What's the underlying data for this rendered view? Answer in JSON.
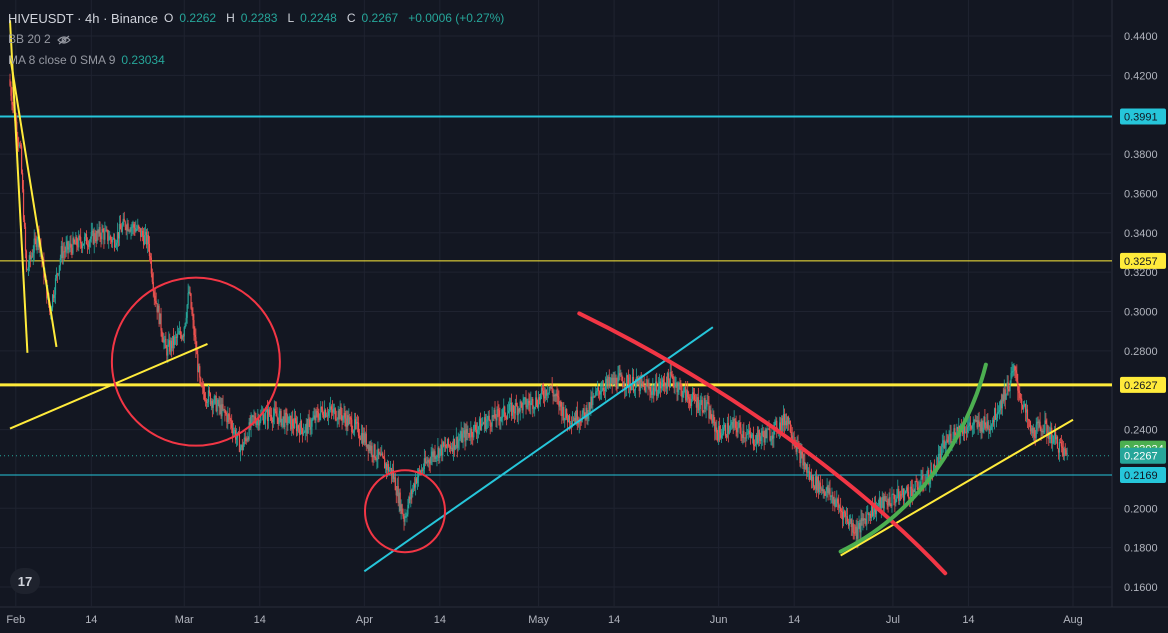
{
  "header": {
    "symbol": "HIVEUSDT · 4h · Binance",
    "o_label": "O",
    "o_value": "0.2262",
    "h_label": "H",
    "h_value": "0.2283",
    "l_label": "L",
    "l_value": "0.2248",
    "c_label": "C",
    "c_value": "0.2267",
    "change": "+0.0006 (+0.27%)",
    "bb_label": "BB 20 2",
    "ma_label": "MA 8 close 0 SMA 9",
    "ma_value": "0.23034"
  },
  "logo_text": "17",
  "colors": {
    "background": "#131722",
    "up": "#26a69a",
    "down": "#ef5350",
    "cyan": "#26c6da",
    "yellow": "#ffeb3b",
    "red": "#f23645",
    "green": "#4caf50"
  },
  "chart_data": {
    "type": "candlestick",
    "x_ticks": [
      "Feb",
      "14",
      "Mar",
      "14",
      "Apr",
      "14",
      "May",
      "14",
      "Jun",
      "14",
      "Jul",
      "14",
      "Aug"
    ],
    "x_tick_dates": [
      "2024-02-01",
      "2024-02-14",
      "2024-03-01",
      "2024-03-14",
      "2024-04-01",
      "2024-04-14",
      "2024-05-01",
      "2024-05-14",
      "2024-06-01",
      "2024-06-14",
      "2024-07-01",
      "2024-07-14",
      "2024-08-01"
    ],
    "y_ticks": [
      "0.4400",
      "0.4200",
      "0.3800",
      "0.3600",
      "0.3400",
      "0.3200",
      "0.3000",
      "0.2800",
      "0.2400",
      "0.2000",
      "0.1800",
      "0.1600"
    ],
    "ylim": [
      0.153,
      0.447
    ],
    "price_series": [
      [
        "2024-01-31",
        0.418
      ],
      [
        "2024-02-02",
        0.38
      ],
      [
        "2024-02-03",
        0.32
      ],
      [
        "2024-02-05",
        0.34
      ],
      [
        "2024-02-07",
        0.3
      ],
      [
        "2024-02-09",
        0.33
      ],
      [
        "2024-02-12",
        0.335
      ],
      [
        "2024-02-14",
        0.337
      ],
      [
        "2024-02-16",
        0.34
      ],
      [
        "2024-02-18",
        0.336
      ],
      [
        "2024-02-20",
        0.345
      ],
      [
        "2024-02-22",
        0.342
      ],
      [
        "2024-02-24",
        0.335
      ],
      [
        "2024-02-25",
        0.31
      ],
      [
        "2024-02-27",
        0.28
      ],
      [
        "2024-03-01",
        0.29
      ],
      [
        "2024-03-02",
        0.31
      ],
      [
        "2024-03-04",
        0.26
      ],
      [
        "2024-03-06",
        0.255
      ],
      [
        "2024-03-09",
        0.245
      ],
      [
        "2024-03-11",
        0.23
      ],
      [
        "2024-03-13",
        0.245
      ],
      [
        "2024-03-16",
        0.248
      ],
      [
        "2024-03-19",
        0.244
      ],
      [
        "2024-03-22",
        0.24
      ],
      [
        "2024-03-25",
        0.25
      ],
      [
        "2024-03-28",
        0.248
      ],
      [
        "2024-03-31",
        0.24
      ],
      [
        "2024-04-03",
        0.228
      ],
      [
        "2024-04-06",
        0.218
      ],
      [
        "2024-04-08",
        0.195
      ],
      [
        "2024-04-10",
        0.215
      ],
      [
        "2024-04-13",
        0.228
      ],
      [
        "2024-04-16",
        0.232
      ],
      [
        "2024-04-19",
        0.238
      ],
      [
        "2024-04-22",
        0.244
      ],
      [
        "2024-04-25",
        0.248
      ],
      [
        "2024-04-28",
        0.252
      ],
      [
        "2024-05-01",
        0.255
      ],
      [
        "2024-05-03",
        0.262
      ],
      [
        "2024-05-06",
        0.246
      ],
      [
        "2024-05-09",
        0.247
      ],
      [
        "2024-05-12",
        0.262
      ],
      [
        "2024-05-15",
        0.265
      ],
      [
        "2024-05-18",
        0.263
      ],
      [
        "2024-05-21",
        0.26
      ],
      [
        "2024-05-24",
        0.266
      ],
      [
        "2024-05-27",
        0.256
      ],
      [
        "2024-05-30",
        0.252
      ],
      [
        "2024-06-01",
        0.238
      ],
      [
        "2024-06-04",
        0.242
      ],
      [
        "2024-06-07",
        0.235
      ],
      [
        "2024-06-10",
        0.238
      ],
      [
        "2024-06-13",
        0.246
      ],
      [
        "2024-06-15",
        0.228
      ],
      [
        "2024-06-17",
        0.215
      ],
      [
        "2024-06-20",
        0.208
      ],
      [
        "2024-06-23",
        0.196
      ],
      [
        "2024-06-25",
        0.188
      ],
      [
        "2024-06-27",
        0.198
      ],
      [
        "2024-06-29",
        0.202
      ],
      [
        "2024-07-02",
        0.206
      ],
      [
        "2024-07-05",
        0.21
      ],
      [
        "2024-07-08",
        0.218
      ],
      [
        "2024-07-10",
        0.232
      ],
      [
        "2024-07-12",
        0.24
      ],
      [
        "2024-07-15",
        0.242
      ],
      [
        "2024-07-18",
        0.243
      ],
      [
        "2024-07-21",
        0.262
      ],
      [
        "2024-07-22",
        0.27
      ],
      [
        "2024-07-23",
        0.258
      ],
      [
        "2024-07-25",
        0.238
      ],
      [
        "2024-07-27",
        0.242
      ],
      [
        "2024-07-29",
        0.235
      ],
      [
        "2024-07-31",
        0.2267
      ]
    ],
    "horizontal_lines": [
      {
        "price": 0.3991,
        "label": "0.3991",
        "color": "#26c6da",
        "width": 2
      },
      {
        "price": 0.3257,
        "label": "0.3257",
        "color": "#ffeb3b",
        "width": 1
      },
      {
        "price": 0.2627,
        "label": "0.2627",
        "color": "#ffeb3b",
        "width": 3
      },
      {
        "price": 0.2169,
        "label": "0.2169",
        "color": "#26c6da",
        "width": 1
      }
    ],
    "price_labels": [
      {
        "price": 0.23034,
        "label": "0.23034",
        "bg": "#4caf50",
        "fg": "#ffffff"
      },
      {
        "price": 0.2267,
        "label": "0.2267",
        "bg": "#26a69a",
        "fg": "#ffffff"
      }
    ],
    "trendlines": [
      {
        "from": [
          "2024-01-31",
          0.2405
        ],
        "to": [
          "2024-03-05",
          0.2835
        ],
        "color": "#ffeb3b",
        "width": 2
      },
      {
        "from": [
          "2024-01-31",
          0.43
        ],
        "to": [
          "2024-02-08",
          0.282
        ],
        "color": "#ffeb3b",
        "width": 2
      },
      {
        "from": [
          "2024-01-31",
          0.448
        ],
        "to": [
          "2024-02-03",
          0.279
        ],
        "color": "#ffeb3b",
        "width": 2
      },
      {
        "from": [
          "2024-04-01",
          0.168
        ],
        "to": [
          "2024-05-31",
          0.292
        ],
        "color": "#26c6da",
        "width": 2
      },
      {
        "from": [
          "2024-06-22",
          0.176
        ],
        "to": [
          "2024-08-01",
          0.245
        ],
        "color": "#ffeb3b",
        "width": 2
      }
    ],
    "curves": [
      {
        "points": [
          [
            "2024-05-08",
            0.299
          ],
          [
            "2024-06-02",
            0.263
          ],
          [
            "2024-06-25",
            0.214
          ],
          [
            "2024-07-10",
            0.167
          ]
        ],
        "color": "#f23645",
        "width": 4
      },
      {
        "points": [
          [
            "2024-06-22",
            0.178
          ],
          [
            "2024-07-08",
            0.201
          ],
          [
            "2024-07-15",
            0.249
          ],
          [
            "2024-07-17",
            0.273
          ]
        ],
        "color": "#4caf50",
        "width": 4
      }
    ],
    "circles": [
      {
        "center": [
          "2024-03-03",
          0.2745
        ],
        "rx": 84,
        "ry": 84,
        "color": "#f23645"
      },
      {
        "center": [
          "2024-04-08",
          0.1985
        ],
        "rx": 40,
        "ry": 41,
        "color": "#f23645"
      }
    ]
  }
}
